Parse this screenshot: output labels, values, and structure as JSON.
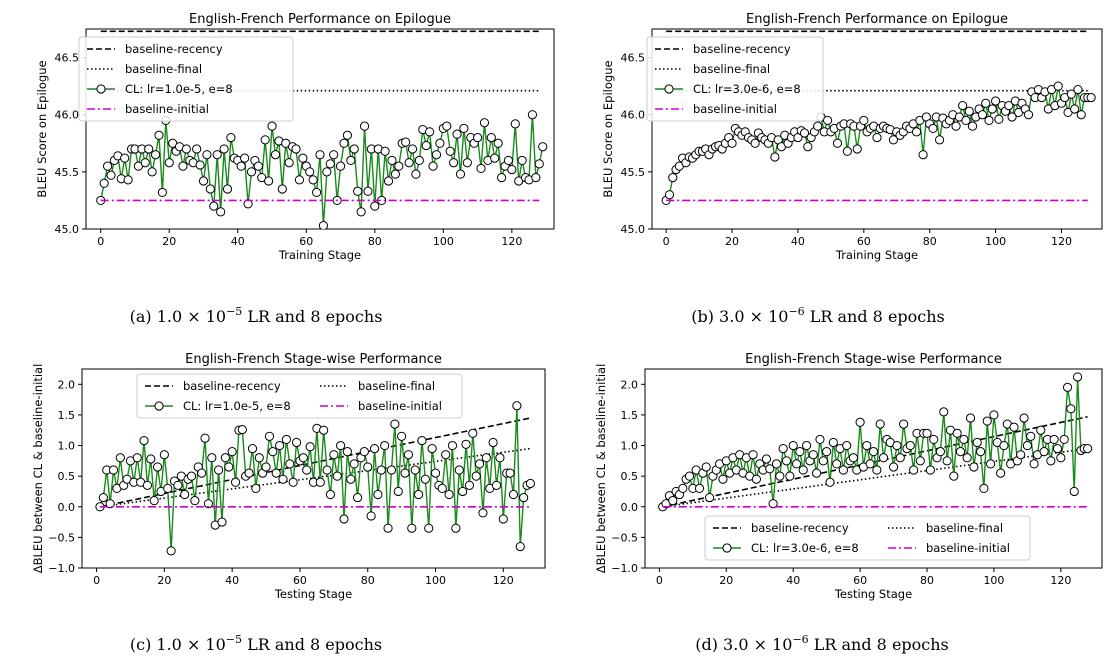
{
  "chart_data": [
    {
      "type": "line",
      "title": "English-French Performance on Epilogue",
      "xlabel": "Training Stage",
      "ylabel": "BLEU Score on Epilogue",
      "xlim": [
        -4.3,
        132.3
      ],
      "ylim": [
        45.0,
        46.75
      ],
      "xticks": [
        "0",
        "20",
        "40",
        "60",
        "80",
        "100",
        "120"
      ],
      "yticks": [
        "45.0",
        "45.5",
        "46.0",
        "46.5"
      ],
      "legend_position": "upper-left",
      "caption": "(a) 1.0 × 10^-5 LR and 8 epochs",
      "caption_prefix": "(a) ",
      "caption_mantissa": "1.0 × 10",
      "caption_exp": "−5",
      "caption_suffix": " LR and 8 epochs",
      "series": [
        {
          "name": "baseline-recency",
          "style": "dashed",
          "color": "#000000",
          "x": [
            0,
            128
          ],
          "y": [
            46.73,
            46.73
          ]
        },
        {
          "name": "baseline-final",
          "style": "dotted",
          "color": "#000000",
          "x": [
            0,
            128
          ],
          "y": [
            46.21,
            46.21
          ]
        },
        {
          "name": "CL: lr=1.0e-5, e=8",
          "style": "solid-marker",
          "color": "#1a8a1a",
          "x0": 0,
          "y": [
            45.25,
            45.4,
            45.55,
            45.47,
            45.6,
            45.64,
            45.44,
            45.62,
            45.43,
            45.7,
            45.7,
            45.55,
            45.7,
            45.58,
            45.7,
            45.5,
            45.65,
            45.82,
            45.32,
            45.95,
            45.58,
            45.75,
            45.68,
            45.72,
            45.55,
            45.7,
            45.6,
            45.58,
            45.7,
            45.56,
            45.42,
            45.65,
            45.35,
            45.2,
            45.65,
            45.15,
            45.7,
            45.35,
            45.8,
            45.62,
            45.6,
            45.55,
            45.62,
            45.22,
            45.5,
            45.6,
            45.55,
            45.45,
            45.78,
            45.42,
            45.9,
            45.65,
            45.77,
            45.35,
            45.75,
            45.58,
            45.72,
            45.7,
            45.43,
            45.62,
            45.55,
            45.5,
            45.43,
            45.32,
            45.65,
            45.03,
            45.5,
            45.57,
            45.65,
            45.25,
            45.55,
            45.75,
            45.82,
            45.6,
            45.7,
            45.33,
            45.15,
            45.9,
            45.33,
            45.7,
            45.2,
            45.7,
            45.25,
            45.68,
            45.42,
            45.6,
            45.48,
            45.55,
            45.75,
            45.76,
            45.58,
            45.7,
            45.48,
            45.6,
            45.87,
            45.73,
            45.85,
            45.55,
            45.65,
            45.75,
            45.88,
            45.9,
            45.68,
            45.58,
            45.83,
            45.48,
            45.88,
            45.58,
            45.8,
            45.75,
            45.8,
            45.53,
            45.93,
            45.6,
            45.8,
            45.62,
            45.75,
            45.45,
            45.55,
            45.6,
            45.52,
            45.92,
            45.42,
            45.6,
            45.45,
            45.43,
            46.0,
            45.45,
            45.57,
            45.72
          ]
        },
        {
          "name": "baseline-initial",
          "style": "dashdot",
          "color": "#cc00cc",
          "x": [
            0,
            128
          ],
          "y": [
            45.25,
            45.25
          ]
        }
      ]
    },
    {
      "type": "line",
      "title": "English-French Performance on Epilogue",
      "xlabel": "Training Stage",
      "ylabel": "BLEU Score on Epilogue",
      "xlim": [
        -4.3,
        132.3
      ],
      "ylim": [
        45.0,
        46.75
      ],
      "xticks": [
        "0",
        "20",
        "40",
        "60",
        "80",
        "100",
        "120"
      ],
      "yticks": [
        "45.0",
        "45.5",
        "46.0",
        "46.5"
      ],
      "legend_position": "upper-left",
      "caption": "(b) 3.0 × 10^-6 LR and 8 epochs",
      "caption_prefix": "(b) ",
      "caption_mantissa": "3.0 × 10",
      "caption_exp": "−6",
      "caption_suffix": " LR and 8 epochs",
      "series": [
        {
          "name": "baseline-recency",
          "style": "dashed",
          "color": "#000000",
          "x": [
            0,
            128
          ],
          "y": [
            46.73,
            46.73
          ]
        },
        {
          "name": "baseline-final",
          "style": "dotted",
          "color": "#000000",
          "x": [
            0,
            128
          ],
          "y": [
            46.21,
            46.21
          ]
        },
        {
          "name": "CL: lr=3.0e-6, e=8",
          "style": "solid-marker",
          "color": "#1a8a1a",
          "x0": 0,
          "y": [
            45.25,
            45.3,
            45.45,
            45.52,
            45.55,
            45.62,
            45.58,
            45.63,
            45.62,
            45.65,
            45.68,
            45.68,
            45.7,
            45.65,
            45.7,
            45.72,
            45.73,
            45.7,
            45.75,
            45.8,
            45.75,
            45.88,
            45.85,
            45.82,
            45.85,
            45.8,
            45.78,
            45.75,
            45.84,
            45.8,
            45.78,
            45.75,
            45.8,
            45.63,
            45.78,
            45.72,
            45.82,
            45.75,
            45.8,
            45.85,
            45.8,
            45.86,
            45.84,
            45.72,
            45.8,
            45.85,
            45.9,
            45.98,
            45.85,
            45.95,
            45.85,
            45.88,
            45.75,
            45.9,
            45.92,
            45.68,
            45.92,
            45.9,
            45.7,
            45.9,
            45.95,
            45.85,
            45.88,
            45.9,
            45.8,
            45.88,
            45.9,
            45.88,
            45.87,
            45.78,
            45.85,
            45.82,
            45.85,
            45.9,
            45.88,
            45.92,
            45.85,
            45.95,
            45.65,
            45.98,
            45.92,
            45.88,
            45.98,
            45.78,
            45.97,
            45.92,
            45.95,
            46.0,
            45.9,
            45.98,
            46.08,
            45.95,
            46.03,
            45.9,
            45.98,
            46.05,
            46.0,
            46.1,
            45.95,
            46.05,
            46.12,
            45.96,
            46.08,
            46.03,
            46.08,
            45.98,
            46.12,
            46.02,
            46.1,
            46.05,
            46.0,
            46.2,
            46.15,
            46.22,
            46.15,
            46.2,
            46.05,
            46.22,
            46.08,
            46.25,
            46.1,
            46.15,
            46.02,
            46.18,
            46.05,
            46.22,
            46.0,
            46.15,
            46.15,
            46.15
          ]
        },
        {
          "name": "baseline-initial",
          "style": "dashdot",
          "color": "#cc00cc",
          "x": [
            0,
            128
          ],
          "y": [
            45.25,
            45.25
          ]
        }
      ]
    },
    {
      "type": "line",
      "title": "English-French Stage-wise Performance",
      "xlabel": "Testing Stage",
      "ylabel": "ΔBLEU between CL & baseline-initial",
      "xlim": [
        -4.3,
        132.3
      ],
      "ylim": [
        -1.0,
        2.25
      ],
      "xticks": [
        "0",
        "20",
        "40",
        "60",
        "80",
        "100",
        "120"
      ],
      "yticks": [
        "−1.0",
        "−0.5",
        "0.0",
        "0.5",
        "1.0",
        "1.5",
        "2.0"
      ],
      "legend_position": "upper-center",
      "caption": "(c) 1.0 × 10^-5 LR and 8 epochs",
      "caption_prefix": "(c) ",
      "caption_mantissa": "1.0 × 10",
      "caption_exp": "−5",
      "caption_suffix": " LR and 8 epochs",
      "series": [
        {
          "name": "baseline-recency",
          "style": "dashed",
          "color": "#000000",
          "x": [
            1,
            128
          ],
          "y": [
            0.0,
            1.45
          ]
        },
        {
          "name": "baseline-final",
          "style": "dotted",
          "color": "#000000",
          "x": [
            1,
            128
          ],
          "y": [
            0.0,
            0.95
          ]
        },
        {
          "name": "CL: lr=1.0e-5, e=8",
          "style": "solid-marker",
          "color": "#1a8a1a",
          "x0": 1,
          "y": [
            0.0,
            0.15,
            0.6,
            0.05,
            0.6,
            0.3,
            0.8,
            0.35,
            0.45,
            0.75,
            0.4,
            0.8,
            0.4,
            1.08,
            0.35,
            0.78,
            0.1,
            0.65,
            0.25,
            0.85,
            0.3,
            -0.72,
            0.42,
            0.35,
            0.5,
            0.2,
            0.45,
            0.5,
            0.1,
            0.65,
            0.55,
            1.12,
            0.05,
            0.8,
            -0.3,
            0.6,
            -0.25,
            0.8,
            0.65,
            0.9,
            0.4,
            1.25,
            1.26,
            0.5,
            0.55,
            0.95,
            0.3,
            0.8,
            0.55,
            0.65,
            1.15,
            0.9,
            0.55,
            1.0,
            0.45,
            1.1,
            0.7,
            0.4,
            1.05,
            0.75,
            0.8,
            0.6,
            0.98,
            0.4,
            1.28,
            0.4,
            1.25,
            0.6,
            0.2,
            0.85,
            0.5,
            1.0,
            -0.2,
            0.9,
            0.45,
            0.7,
            0.15,
            0.8,
            0.9,
            0.65,
            -0.15,
            0.95,
            0.2,
            0.6,
            1.0,
            -0.35,
            0.6,
            1.35,
            0.25,
            1.15,
            0.55,
            0.85,
            -0.35,
            0.6,
            0.2,
            1.08,
            0.45,
            -0.35,
            0.95,
            0.55,
            0.35,
            0.3,
            0.85,
            0.2,
            1.0,
            -0.35,
            0.6,
            0.25,
            1.02,
            0.35,
            1.2,
            0.5,
            0.7,
            -0.1,
            0.8,
            0.3,
            1.05,
            0.35,
            0.8,
            -0.2,
            0.55,
            0.55,
            0.2,
            1.65,
            -0.65,
            0.15,
            0.35,
            0.38
          ]
        },
        {
          "name": "baseline-initial",
          "style": "dashdot",
          "color": "#cc00cc",
          "x": [
            1,
            128
          ],
          "y": [
            0.0,
            0.0
          ]
        }
      ]
    },
    {
      "type": "line",
      "title": "English-French Stage-wise Performance",
      "xlabel": "Testing Stage",
      "ylabel": "ΔBLEU between CL & baseline-initial",
      "xlim": [
        -4.3,
        132.3
      ],
      "ylim": [
        -1.0,
        2.25
      ],
      "xticks": [
        "0",
        "20",
        "40",
        "60",
        "80",
        "100",
        "120"
      ],
      "yticks": [
        "−1.0",
        "−0.5",
        "0.0",
        "0.5",
        "1.0",
        "1.5",
        "2.0"
      ],
      "legend_position": "lower-center",
      "caption": "(d) 3.0 × 10^-6 LR and 8 epochs",
      "caption_prefix": "(d) ",
      "caption_mantissa": "3.0 × 10",
      "caption_exp": "−6",
      "caption_suffix": " LR and 8 epochs",
      "series": [
        {
          "name": "baseline-recency",
          "style": "dashed",
          "color": "#000000",
          "x": [
            1,
            128
          ],
          "y": [
            0.0,
            1.47
          ]
        },
        {
          "name": "baseline-final",
          "style": "dotted",
          "color": "#000000",
          "x": [
            1,
            128
          ],
          "y": [
            0.0,
            0.95
          ]
        },
        {
          "name": "CL: lr=3.0e-6, e=8",
          "style": "solid-marker",
          "color": "#1a8a1a",
          "x0": 1,
          "y": [
            0.0,
            0.05,
            0.18,
            0.1,
            0.25,
            0.2,
            0.3,
            0.45,
            0.5,
            0.3,
            0.6,
            0.3,
            0.55,
            0.65,
            0.15,
            0.5,
            0.6,
            0.7,
            0.45,
            0.75,
            0.55,
            0.8,
            0.6,
            0.85,
            0.55,
            0.8,
            0.5,
            0.85,
            0.45,
            0.7,
            0.6,
            0.78,
            0.62,
            0.05,
            0.7,
            0.5,
            0.95,
            0.75,
            0.5,
            1.0,
            0.7,
            0.9,
            0.6,
            1.0,
            0.75,
            0.85,
            0.55,
            1.1,
            0.75,
            0.9,
            0.4,
            1.05,
            0.7,
            0.95,
            0.6,
            1.0,
            0.75,
            0.8,
            0.6,
            1.38,
            0.65,
            1.0,
            0.7,
            0.9,
            0.6,
            1.35,
            0.8,
            1.1,
            1.05,
            0.65,
            1.0,
            0.8,
            1.35,
            0.95,
            1.0,
            0.6,
            1.2,
            0.75,
            1.2,
            1.2,
            0.6,
            1.1,
            0.8,
            0.9,
            1.55,
            0.75,
            1.25,
            0.5,
            1.2,
            0.9,
            1.1,
            0.8,
            1.45,
            0.65,
            1.05,
            0.9,
            0.3,
            1.4,
            0.7,
            1.5,
            1.05,
            0.55,
            1.0,
            1.35,
            0.7,
            1.3,
            0.75,
            0.85,
            1.45,
            1.0,
            1.15,
            0.7,
            0.85,
            1.25,
            0.9,
            1.1,
            0.75,
            1.1,
            0.95,
            0.8,
            1.1,
            1.95,
            1.6,
            0.25,
            2.12,
            0.92,
            0.95,
            0.95
          ]
        },
        {
          "name": "baseline-initial",
          "style": "dashdot",
          "color": "#cc00cc",
          "x": [
            1,
            128
          ],
          "y": [
            0.0,
            0.0
          ]
        }
      ]
    }
  ]
}
